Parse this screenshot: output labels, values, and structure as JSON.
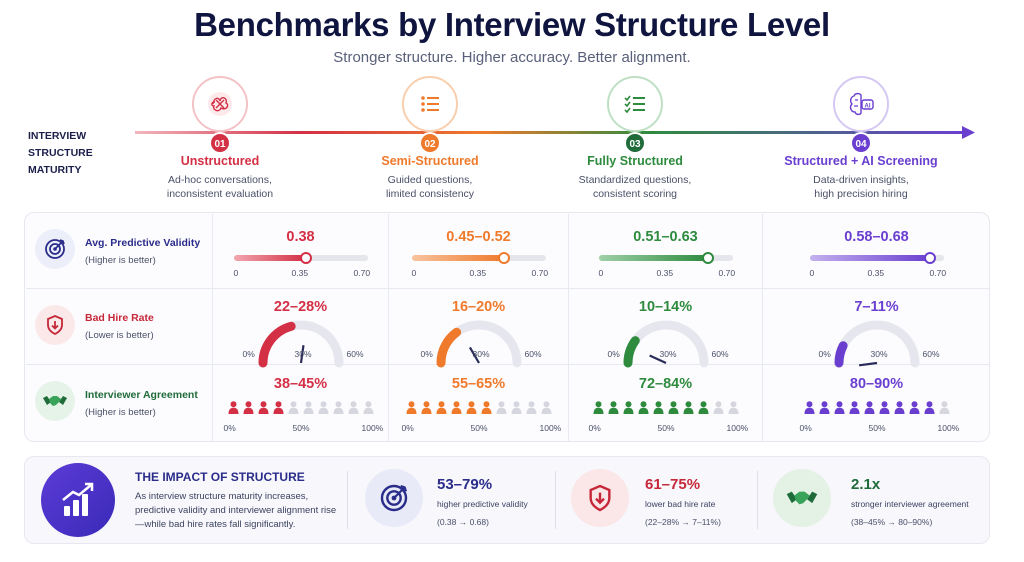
{
  "title": "Benchmarks by Interview Structure Level",
  "subtitle": "Stronger structure. Higher accuracy. Better alignment.",
  "maturity_label": [
    "INTERVIEW",
    "STRUCTURE",
    "MATURITY"
  ],
  "stages": [
    {
      "num": "01",
      "name": "Unstructured",
      "desc1": "Ad-hoc conversations,",
      "desc2": "inconsistent evaluation",
      "color": "#d32f45",
      "icon": "brain-scribble-icon"
    },
    {
      "num": "02",
      "name": "Semi-Structured",
      "desc1": "Guided questions,",
      "desc2": "limited consistency",
      "color": "#ef7a2b",
      "icon": "list-icon"
    },
    {
      "num": "03",
      "name": "Fully Structured",
      "desc1": "Standardized questions,",
      "desc2": "consistent scoring",
      "color": "#2e8b3e",
      "icon": "checklist-icon"
    },
    {
      "num": "04",
      "name": "Structured + AI Screening",
      "desc1": "Data-driven insights,",
      "desc2": "high precision hiring",
      "color": "#6a3fd0",
      "icon": "ai-brain-icon"
    }
  ],
  "metrics": [
    {
      "name": "Avg. Predictive Validity",
      "sub": "(Higher is better)",
      "color": "#2a2c8a",
      "icon": "target-icon",
      "icon_bg": "#eceef9"
    },
    {
      "name": "Bad Hire Rate",
      "sub": "(Lower is better)",
      "color": "#c62839",
      "icon": "shield-down-icon",
      "icon_bg": "#fbe9ea"
    },
    {
      "name": "Interviewer Agreement",
      "sub": "(Higher is better)",
      "color": "#1f6b3a",
      "icon": "handshake-icon",
      "icon_bg": "#e6f3e8"
    }
  ],
  "slider_ticks": [
    "0",
    "0.35",
    "0.70"
  ],
  "gauge_ticks": [
    "0%",
    "30%",
    "60%"
  ],
  "people_ticks": [
    "0%",
    "50%",
    "100%"
  ],
  "chart_data": [
    {
      "type": "bar",
      "title": "Avg. Predictive Validity",
      "categories": [
        "Unstructured",
        "Semi-Structured",
        "Fully Structured",
        "Structured + AI Screening"
      ],
      "labels": [
        "0.38",
        "0.45–0.52",
        "0.51–0.63",
        "0.58–0.68"
      ],
      "values": [
        0.38,
        0.485,
        0.57,
        0.63
      ],
      "ylim": [
        0,
        0.7
      ]
    },
    {
      "type": "bar",
      "title": "Bad Hire Rate",
      "categories": [
        "Unstructured",
        "Semi-Structured",
        "Fully Structured",
        "Structured + AI Screening"
      ],
      "labels": [
        "22–28%",
        "16–20%",
        "10–14%",
        "7–11%"
      ],
      "values": [
        25,
        18,
        12,
        9
      ],
      "ylim": [
        0,
        60
      ]
    },
    {
      "type": "bar",
      "title": "Interviewer Agreement",
      "categories": [
        "Unstructured",
        "Semi-Structured",
        "Fully Structured",
        "Structured + AI Screening"
      ],
      "labels": [
        "38–45%",
        "55–65%",
        "72–84%",
        "80–90%"
      ],
      "values": [
        41.5,
        60,
        78,
        85
      ],
      "ylim": [
        0,
        100
      ]
    }
  ],
  "impact": {
    "title": "THE IMPACT OF STRUCTURE",
    "text": "As interview structure maturity increases, predictive validity and interviewer alignment rise—while bad hire rates fall significantly.",
    "stats": [
      {
        "value": "53–79%",
        "label": "higher predictive validity",
        "range": "(0.38 → 0.68)",
        "color": "#2a2c8a",
        "bg": "#e8eaf8",
        "icon": "target-icon"
      },
      {
        "value": "61–75%",
        "label": "lower bad hire rate",
        "range": "(22–28% → 7–11%)",
        "color": "#c62839",
        "bg": "#fbe6e8",
        "icon": "shield-down-icon"
      },
      {
        "value": "2.1x",
        "label": "stronger interviewer agreement",
        "range": "(38–45% → 80–90%)",
        "color": "#1f6b3a",
        "bg": "#e4f2e6",
        "icon": "handshake-icon"
      }
    ]
  }
}
